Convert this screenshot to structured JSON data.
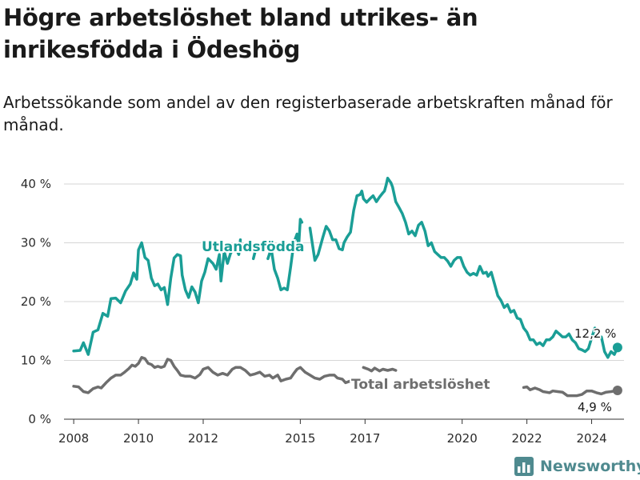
{
  "title": "Högre arbetslöshet bland utrikes- än inrikesfödda i Ödeshög",
  "subtitle": "Arbetssökande som andel av den registerbaserade arbetskraften månad för månad.",
  "brand": {
    "name": "Newsworthy",
    "icon": "bar-chart-logo-icon"
  },
  "colors": {
    "foreign": "#1a9e96",
    "total": "#6e6e6e",
    "grid": "#d6d6d6",
    "brand": "#4f8a8f"
  },
  "chart_data": {
    "type": "line",
    "title": "",
    "xlabel": "",
    "ylabel": "",
    "ylim": [
      0,
      40
    ],
    "xlim": [
      2007.7,
      2025.0
    ],
    "yticks": [
      0,
      10,
      20,
      30,
      40
    ],
    "yticklabels": [
      "0 %",
      "10 %",
      "20 %",
      "30 %",
      "40 %"
    ],
    "xticks": [
      2008,
      2010,
      2012,
      2015,
      2017,
      2020,
      2022,
      2024
    ],
    "xticklabels": [
      "2008",
      "2010",
      "2012",
      "2015",
      "2017",
      "2020",
      "2022",
      "2024"
    ],
    "grid": true,
    "series": [
      {
        "name": "Utlandsfödda",
        "key": "foreign",
        "end_label": "12,2 %",
        "segments": [
          [
            [
              2008.0,
              11.6
            ],
            [
              2008.2,
              11.7
            ],
            [
              2008.3,
              13.0
            ],
            [
              2008.45,
              11.0
            ],
            [
              2008.6,
              14.8
            ],
            [
              2008.75,
              15.2
            ],
            [
              2008.9,
              18.0
            ],
            [
              2009.05,
              17.5
            ],
            [
              2009.15,
              20.5
            ],
            [
              2009.3,
              20.6
            ],
            [
              2009.45,
              19.8
            ],
            [
              2009.6,
              21.8
            ],
            [
              2009.75,
              23.0
            ],
            [
              2009.85,
              24.9
            ],
            [
              2009.95,
              23.8
            ],
            [
              2010.0,
              28.8
            ],
            [
              2010.1,
              30.0
            ],
            [
              2010.2,
              27.5
            ],
            [
              2010.3,
              27.0
            ],
            [
              2010.4,
              24.0
            ],
            [
              2010.5,
              22.7
            ],
            [
              2010.6,
              23.0
            ],
            [
              2010.7,
              22.0
            ],
            [
              2010.8,
              22.4
            ],
            [
              2010.9,
              19.5
            ],
            [
              2011.0,
              24.0
            ],
            [
              2011.1,
              27.4
            ],
            [
              2011.2,
              28.0
            ],
            [
              2011.3,
              27.8
            ],
            [
              2011.35,
              24.5
            ],
            [
              2011.45,
              22.0
            ],
            [
              2011.55,
              20.7
            ],
            [
              2011.65,
              22.5
            ],
            [
              2011.75,
              21.6
            ],
            [
              2011.85,
              19.8
            ],
            [
              2011.95,
              23.5
            ],
            [
              2012.05,
              25.0
            ],
            [
              2012.15,
              27.3
            ],
            [
              2012.3,
              26.5
            ],
            [
              2012.4,
              25.5
            ],
            [
              2012.5,
              28.0
            ],
            [
              2012.55,
              23.5
            ],
            [
              2012.65,
              28.5
            ],
            [
              2012.75,
              26.5
            ],
            [
              2012.85,
              28.3
            ],
            [
              2013.0,
              29.2
            ],
            [
              2013.1,
              28.0
            ],
            [
              2013.15,
              30.5
            ]
          ],
          [
            [
              2013.55,
              27.3
            ],
            [
              2013.65,
              29.5
            ]
          ],
          [
            [
              2014.0,
              27.3
            ],
            [
              2014.1,
              29.0
            ],
            [
              2014.2,
              25.5
            ],
            [
              2014.3,
              24.0
            ],
            [
              2014.4,
              22.0
            ],
            [
              2014.5,
              22.3
            ],
            [
              2014.6,
              22.0
            ],
            [
              2014.7,
              25.8
            ],
            [
              2014.8,
              30.0
            ],
            [
              2014.9,
              31.5
            ],
            [
              2014.95,
              29.5
            ],
            [
              2015.0,
              34.0
            ],
            [
              2015.05,
              33.5
            ]
          ],
          [
            [
              2015.3,
              32.5
            ],
            [
              2015.45,
              27.0
            ],
            [
              2015.55,
              28.0
            ],
            [
              2015.7,
              31.0
            ],
            [
              2015.8,
              32.8
            ],
            [
              2015.9,
              32.0
            ],
            [
              2016.0,
              30.5
            ],
            [
              2016.1,
              30.5
            ],
            [
              2016.2,
              29.0
            ],
            [
              2016.3,
              28.8
            ],
            [
              2016.35,
              30.0
            ],
            [
              2016.45,
              31.0
            ],
            [
              2016.55,
              31.8
            ],
            [
              2016.65,
              35.5
            ],
            [
              2016.75,
              38.0
            ],
            [
              2016.85,
              38.2
            ],
            [
              2016.9,
              38.8
            ],
            [
              2016.95,
              37.5
            ],
            [
              2017.05,
              36.9
            ],
            [
              2017.15,
              37.5
            ],
            [
              2017.25,
              38.0
            ],
            [
              2017.35,
              37.0
            ],
            [
              2017.45,
              37.8
            ],
            [
              2017.55,
              38.5
            ],
            [
              2017.6,
              38.8
            ],
            [
              2017.65,
              39.8
            ],
            [
              2017.7,
              41.0
            ],
            [
              2017.8,
              40.2
            ],
            [
              2017.85,
              39.5
            ],
            [
              2017.95,
              37.0
            ],
            [
              2018.05,
              36.0
            ],
            [
              2018.15,
              35.0
            ],
            [
              2018.25,
              33.5
            ],
            [
              2018.35,
              31.5
            ],
            [
              2018.45,
              32.0
            ],
            [
              2018.55,
              31.2
            ],
            [
              2018.65,
              33.0
            ],
            [
              2018.75,
              33.5
            ],
            [
              2018.85,
              32.0
            ],
            [
              2018.95,
              29.5
            ],
            [
              2019.05,
              30.0
            ],
            [
              2019.15,
              28.5
            ],
            [
              2019.25,
              28.0
            ],
            [
              2019.35,
              27.5
            ],
            [
              2019.45,
              27.5
            ],
            [
              2019.55,
              26.9
            ],
            [
              2019.65,
              26.0
            ],
            [
              2019.75,
              27.0
            ],
            [
              2019.85,
              27.5
            ],
            [
              2019.95,
              27.5
            ],
            [
              2020.05,
              26.0
            ],
            [
              2020.15,
              25.0
            ],
            [
              2020.25,
              24.5
            ],
            [
              2020.35,
              24.8
            ],
            [
              2020.45,
              24.5
            ],
            [
              2020.55,
              26.0
            ],
            [
              2020.65,
              24.8
            ],
            [
              2020.75,
              25.0
            ],
            [
              2020.8,
              24.3
            ],
            [
              2020.9,
              25.0
            ],
            [
              2021.0,
              23.0
            ],
            [
              2021.1,
              21.0
            ],
            [
              2021.2,
              20.2
            ],
            [
              2021.3,
              19.0
            ],
            [
              2021.4,
              19.5
            ],
            [
              2021.5,
              18.2
            ],
            [
              2021.6,
              18.5
            ],
            [
              2021.7,
              17.2
            ],
            [
              2021.8,
              17.0
            ],
            [
              2021.9,
              15.5
            ],
            [
              2022.0,
              14.8
            ],
            [
              2022.1,
              13.5
            ],
            [
              2022.2,
              13.5
            ],
            [
              2022.3,
              12.7
            ],
            [
              2022.4,
              13.0
            ],
            [
              2022.5,
              12.5
            ],
            [
              2022.6,
              13.5
            ],
            [
              2022.7,
              13.5
            ],
            [
              2022.8,
              14.0
            ],
            [
              2022.9,
              15.0
            ],
            [
              2023.0,
              14.5
            ],
            [
              2023.1,
              14.0
            ],
            [
              2023.2,
              14.0
            ],
            [
              2023.3,
              14.5
            ],
            [
              2023.4,
              13.5
            ],
            [
              2023.5,
              13.0
            ],
            [
              2023.6,
              12.0
            ],
            [
              2023.7,
              11.8
            ],
            [
              2023.8,
              11.5
            ],
            [
              2023.9,
              12.0
            ],
            [
              2024.0,
              13.8
            ],
            [
              2024.1,
              15.5
            ]
          ],
          [
            [
              2024.3,
              14.0
            ],
            [
              2024.4,
              11.5
            ],
            [
              2024.5,
              10.5
            ],
            [
              2024.6,
              11.5
            ],
            [
              2024.7,
              11.0
            ],
            [
              2024.8,
              12.2
            ]
          ]
        ]
      },
      {
        "name": "Total arbetslöshet",
        "key": "total",
        "end_label": "4,9 %",
        "segments": [
          [
            [
              2008.0,
              5.6
            ],
            [
              2008.15,
              5.5
            ],
            [
              2008.3,
              4.7
            ],
            [
              2008.45,
              4.5
            ],
            [
              2008.6,
              5.2
            ],
            [
              2008.75,
              5.5
            ],
            [
              2008.85,
              5.3
            ],
            [
              2009.0,
              6.2
            ],
            [
              2009.15,
              7.0
            ],
            [
              2009.3,
              7.5
            ],
            [
              2009.45,
              7.5
            ],
            [
              2009.55,
              7.9
            ],
            [
              2009.7,
              8.6
            ],
            [
              2009.8,
              9.2
            ],
            [
              2009.9,
              9.0
            ],
            [
              2010.0,
              9.5
            ],
            [
              2010.1,
              10.5
            ],
            [
              2010.2,
              10.3
            ],
            [
              2010.3,
              9.5
            ],
            [
              2010.4,
              9.3
            ],
            [
              2010.5,
              8.8
            ],
            [
              2010.6,
              9.0
            ],
            [
              2010.7,
              8.8
            ],
            [
              2010.8,
              9.0
            ],
            [
              2010.9,
              10.2
            ],
            [
              2011.0,
              10.0
            ],
            [
              2011.1,
              9.0
            ],
            [
              2011.2,
              8.3
            ],
            [
              2011.3,
              7.5
            ],
            [
              2011.45,
              7.3
            ],
            [
              2011.6,
              7.3
            ],
            [
              2011.75,
              7.0
            ],
            [
              2011.9,
              7.6
            ],
            [
              2012.0,
              8.5
            ],
            [
              2012.15,
              8.8
            ],
            [
              2012.3,
              8.0
            ],
            [
              2012.45,
              7.5
            ],
            [
              2012.6,
              7.8
            ],
            [
              2012.75,
              7.5
            ],
            [
              2012.9,
              8.5
            ],
            [
              2013.0,
              8.8
            ],
            [
              2013.15,
              8.8
            ],
            [
              2013.3,
              8.3
            ],
            [
              2013.45,
              7.5
            ],
            [
              2013.6,
              7.7
            ],
            [
              2013.75,
              8.0
            ],
            [
              2013.9,
              7.3
            ],
            [
              2014.05,
              7.5
            ],
            [
              2014.15,
              7.0
            ],
            [
              2014.3,
              7.5
            ],
            [
              2014.4,
              6.5
            ],
            [
              2014.55,
              6.8
            ],
            [
              2014.7,
              7.0
            ],
            [
              2014.8,
              7.8
            ],
            [
              2014.9,
              8.5
            ],
            [
              2015.0,
              8.8
            ],
            [
              2015.15,
              8.0
            ],
            [
              2015.3,
              7.5
            ],
            [
              2015.45,
              7.0
            ],
            [
              2015.6,
              6.8
            ],
            [
              2015.75,
              7.3
            ],
            [
              2015.9,
              7.5
            ],
            [
              2016.05,
              7.5
            ],
            [
              2016.15,
              7.0
            ],
            [
              2016.3,
              6.8
            ],
            [
              2016.4,
              6.2
            ],
            [
              2016.55,
              6.5
            ]
          ],
          [
            [
              2016.95,
              8.8
            ],
            [
              2017.1,
              8.5
            ],
            [
              2017.2,
              8.2
            ],
            [
              2017.3,
              8.7
            ],
            [
              2017.45,
              8.2
            ],
            [
              2017.55,
              8.5
            ],
            [
              2017.7,
              8.3
            ],
            [
              2017.85,
              8.5
            ],
            [
              2017.95,
              8.3
            ]
          ],
          [
            [
              2021.9,
              5.4
            ],
            [
              2022.0,
              5.5
            ],
            [
              2022.1,
              5.0
            ],
            [
              2022.25,
              5.3
            ],
            [
              2022.4,
              5.0
            ],
            [
              2022.5,
              4.7
            ],
            [
              2022.6,
              4.6
            ],
            [
              2022.7,
              4.5
            ],
            [
              2022.8,
              4.8
            ],
            [
              2022.95,
              4.7
            ],
            [
              2023.1,
              4.6
            ],
            [
              2023.25,
              4.0
            ],
            [
              2023.4,
              4.0
            ],
            [
              2023.55,
              4.0
            ],
            [
              2023.7,
              4.2
            ],
            [
              2023.85,
              4.8
            ],
            [
              2024.0,
              4.8
            ],
            [
              2024.15,
              4.5
            ],
            [
              2024.3,
              4.3
            ],
            [
              2024.45,
              4.6
            ],
            [
              2024.6,
              4.7
            ],
            [
              2024.8,
              4.9
            ]
          ]
        ]
      }
    ]
  }
}
